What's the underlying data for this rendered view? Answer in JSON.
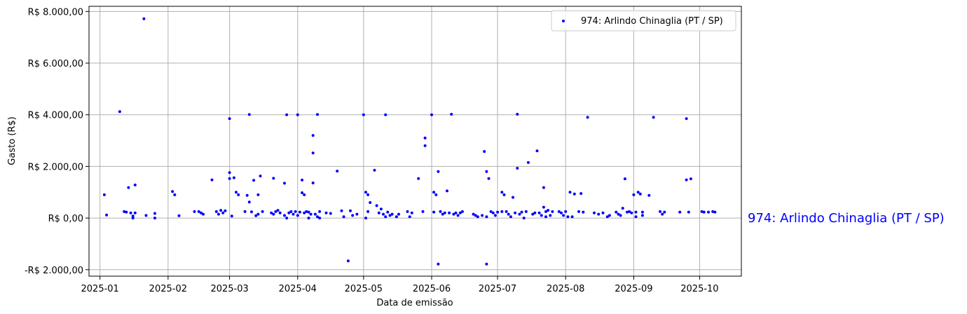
{
  "chart_data": {
    "type": "scatter",
    "xlabel": "Data de emissão",
    "ylabel": "Gasto (R$)",
    "xlim": [
      "2024-12-27",
      "2025-10-20"
    ],
    "ylim": [
      -2250,
      8200
    ],
    "x_ticks": [
      "2025-01-01",
      "2025-02-01",
      "2025-03-01",
      "2025-04-01",
      "2025-05-01",
      "2025-06-01",
      "2025-07-01",
      "2025-08-01",
      "2025-09-01",
      "2025-10-01"
    ],
    "x_tick_labels": [
      "2025-01",
      "2025-02",
      "2025-03",
      "2025-04",
      "2025-05",
      "2025-06",
      "2025-07",
      "2025-08",
      "2025-09",
      "2025-10"
    ],
    "y_ticks": [
      -2000,
      0,
      2000,
      4000,
      6000,
      8000
    ],
    "y_tick_labels": [
      "-R$ 2.000,00",
      "R$ 0,00",
      "R$ 2.000,00",
      "R$ 4.000,00",
      "R$ 6.000,00",
      "R$ 8.000,00"
    ],
    "grid": true,
    "legend_position": "top-right",
    "side_label": "974: Arlindo Chinaglia (PT / SP)",
    "series": [
      {
        "name": "974: Arlindo Chinaglia (PT / SP)",
        "color": "#0000ff",
        "points": [
          [
            "2025-01-03",
            900
          ],
          [
            "2025-01-04",
            120
          ],
          [
            "2025-01-10",
            4120
          ],
          [
            "2025-01-12",
            250
          ],
          [
            "2025-01-13",
            230
          ],
          [
            "2025-01-14",
            1180
          ],
          [
            "2025-01-15",
            200
          ],
          [
            "2025-01-16",
            80
          ],
          [
            "2025-01-16",
            0
          ],
          [
            "2025-01-17",
            200
          ],
          [
            "2025-01-17",
            1280
          ],
          [
            "2025-01-21",
            7720
          ],
          [
            "2025-01-22",
            100
          ],
          [
            "2025-01-26",
            180
          ],
          [
            "2025-01-26",
            0
          ],
          [
            "2025-02-03",
            1030
          ],
          [
            "2025-02-04",
            900
          ],
          [
            "2025-02-06",
            90
          ],
          [
            "2025-02-13",
            250
          ],
          [
            "2025-02-15",
            250
          ],
          [
            "2025-02-16",
            200
          ],
          [
            "2025-02-17",
            150
          ],
          [
            "2025-02-21",
            1480
          ],
          [
            "2025-02-23",
            250
          ],
          [
            "2025-02-24",
            150
          ],
          [
            "2025-02-25",
            300
          ],
          [
            "2025-02-26",
            200
          ],
          [
            "2025-02-27",
            280
          ],
          [
            "2025-03-01",
            3850
          ],
          [
            "2025-03-01",
            1530
          ],
          [
            "2025-03-01",
            1760
          ],
          [
            "2025-03-02",
            80
          ],
          [
            "2025-03-03",
            1560
          ],
          [
            "2025-03-04",
            1000
          ],
          [
            "2025-03-05",
            900
          ],
          [
            "2025-03-08",
            250
          ],
          [
            "2025-03-09",
            880
          ],
          [
            "2025-03-10",
            4010
          ],
          [
            "2025-03-10",
            620
          ],
          [
            "2025-03-11",
            240
          ],
          [
            "2025-03-12",
            1460
          ],
          [
            "2025-03-13",
            90
          ],
          [
            "2025-03-14",
            900
          ],
          [
            "2025-03-14",
            150
          ],
          [
            "2025-03-15",
            1630
          ],
          [
            "2025-03-16",
            250
          ],
          [
            "2025-03-20",
            200
          ],
          [
            "2025-03-21",
            1540
          ],
          [
            "2025-03-21",
            150
          ],
          [
            "2025-03-22",
            250
          ],
          [
            "2025-03-23",
            300
          ],
          [
            "2025-03-24",
            200
          ],
          [
            "2025-03-26",
            1350
          ],
          [
            "2025-03-26",
            100
          ],
          [
            "2025-03-27",
            4000
          ],
          [
            "2025-03-27",
            0
          ],
          [
            "2025-03-28",
            200
          ],
          [
            "2025-03-29",
            250
          ],
          [
            "2025-03-30",
            150
          ],
          [
            "2025-03-31",
            250
          ],
          [
            "2025-04-01",
            4000
          ],
          [
            "2025-04-01",
            100
          ],
          [
            "2025-04-02",
            230
          ],
          [
            "2025-04-03",
            1470
          ],
          [
            "2025-04-03",
            980
          ],
          [
            "2025-04-04",
            900
          ],
          [
            "2025-04-04",
            200
          ],
          [
            "2025-04-05",
            250
          ],
          [
            "2025-04-06",
            230
          ],
          [
            "2025-04-06",
            0
          ],
          [
            "2025-04-07",
            150
          ],
          [
            "2025-04-08",
            3200
          ],
          [
            "2025-04-08",
            2520
          ],
          [
            "2025-04-08",
            1360
          ],
          [
            "2025-04-09",
            150
          ],
          [
            "2025-04-10",
            4010
          ],
          [
            "2025-04-10",
            50
          ],
          [
            "2025-04-11",
            250
          ],
          [
            "2025-04-11",
            0
          ],
          [
            "2025-04-14",
            200
          ],
          [
            "2025-04-16",
            180
          ],
          [
            "2025-04-19",
            1820
          ],
          [
            "2025-04-21",
            280
          ],
          [
            "2025-04-22",
            50
          ],
          [
            "2025-04-24",
            -1660
          ],
          [
            "2025-04-25",
            280
          ],
          [
            "2025-04-26",
            100
          ],
          [
            "2025-04-28",
            150
          ],
          [
            "2025-05-01",
            4000
          ],
          [
            "2025-05-02",
            1000
          ],
          [
            "2025-05-02",
            0
          ],
          [
            "2025-05-03",
            900
          ],
          [
            "2025-05-03",
            250
          ],
          [
            "2025-05-04",
            600
          ],
          [
            "2025-05-06",
            1850
          ],
          [
            "2025-05-07",
            480
          ],
          [
            "2025-05-08",
            200
          ],
          [
            "2025-05-09",
            350
          ],
          [
            "2025-05-10",
            150
          ],
          [
            "2025-05-11",
            4000
          ],
          [
            "2025-05-11",
            50
          ],
          [
            "2025-05-12",
            230
          ],
          [
            "2025-05-13",
            100
          ],
          [
            "2025-05-14",
            150
          ],
          [
            "2025-05-16",
            50
          ],
          [
            "2025-05-17",
            150
          ],
          [
            "2025-05-21",
            250
          ],
          [
            "2025-05-22",
            50
          ],
          [
            "2025-05-23",
            200
          ],
          [
            "2025-05-26",
            1530
          ],
          [
            "2025-05-28",
            250
          ],
          [
            "2025-05-29",
            3100
          ],
          [
            "2025-05-29",
            2800
          ],
          [
            "2025-06-01",
            4000
          ],
          [
            "2025-06-02",
            1000
          ],
          [
            "2025-06-02",
            230
          ],
          [
            "2025-06-03",
            900
          ],
          [
            "2025-06-04",
            1800
          ],
          [
            "2025-06-04",
            -1780
          ],
          [
            "2025-06-05",
            250
          ],
          [
            "2025-06-06",
            150
          ],
          [
            "2025-06-07",
            200
          ],
          [
            "2025-06-08",
            1050
          ],
          [
            "2025-06-09",
            200
          ],
          [
            "2025-06-10",
            4020
          ],
          [
            "2025-06-11",
            150
          ],
          [
            "2025-06-12",
            200
          ],
          [
            "2025-06-13",
            100
          ],
          [
            "2025-06-14",
            200
          ],
          [
            "2025-06-15",
            250
          ],
          [
            "2025-06-20",
            150
          ],
          [
            "2025-06-21",
            100
          ],
          [
            "2025-06-22",
            50
          ],
          [
            "2025-06-24",
            100
          ],
          [
            "2025-06-25",
            2580
          ],
          [
            "2025-06-26",
            1800
          ],
          [
            "2025-06-26",
            50
          ],
          [
            "2025-06-26",
            -1780
          ],
          [
            "2025-06-27",
            1530
          ],
          [
            "2025-06-28",
            250
          ],
          [
            "2025-06-29",
            200
          ],
          [
            "2025-06-30",
            100
          ],
          [
            "2025-07-01",
            230
          ],
          [
            "2025-07-03",
            1000
          ],
          [
            "2025-07-03",
            250
          ],
          [
            "2025-07-04",
            900
          ],
          [
            "2025-07-05",
            250
          ],
          [
            "2025-07-06",
            150
          ],
          [
            "2025-07-07",
            50
          ],
          [
            "2025-07-08",
            800
          ],
          [
            "2025-07-09",
            200
          ],
          [
            "2025-07-10",
            4020
          ],
          [
            "2025-07-10",
            1930
          ],
          [
            "2025-07-11",
            150
          ],
          [
            "2025-07-12",
            230
          ],
          [
            "2025-07-13",
            0
          ],
          [
            "2025-07-14",
            250
          ],
          [
            "2025-07-15",
            2150
          ],
          [
            "2025-07-17",
            150
          ],
          [
            "2025-07-18",
            200
          ],
          [
            "2025-07-19",
            2600
          ],
          [
            "2025-07-20",
            200
          ],
          [
            "2025-07-21",
            100
          ],
          [
            "2025-07-22",
            1180
          ],
          [
            "2025-07-22",
            420
          ],
          [
            "2025-07-23",
            50
          ],
          [
            "2025-07-23",
            250
          ],
          [
            "2025-07-24",
            300
          ],
          [
            "2025-07-25",
            100
          ],
          [
            "2025-07-26",
            250
          ],
          [
            "2025-07-29",
            250
          ],
          [
            "2025-07-30",
            200
          ],
          [
            "2025-07-31",
            100
          ],
          [
            "2025-08-01",
            250
          ],
          [
            "2025-08-02",
            50
          ],
          [
            "2025-08-03",
            1000
          ],
          [
            "2025-08-04",
            50
          ],
          [
            "2025-08-05",
            930
          ],
          [
            "2025-08-07",
            250
          ],
          [
            "2025-08-08",
            950
          ],
          [
            "2025-08-09",
            230
          ],
          [
            "2025-08-11",
            3900
          ],
          [
            "2025-08-14",
            200
          ],
          [
            "2025-08-16",
            150
          ],
          [
            "2025-08-18",
            200
          ],
          [
            "2025-08-20",
            50
          ],
          [
            "2025-08-21",
            100
          ],
          [
            "2025-08-24",
            230
          ],
          [
            "2025-08-25",
            150
          ],
          [
            "2025-08-26",
            100
          ],
          [
            "2025-08-27",
            380
          ],
          [
            "2025-08-28",
            1520
          ],
          [
            "2025-08-29",
            230
          ],
          [
            "2025-08-30",
            250
          ],
          [
            "2025-08-31",
            200
          ],
          [
            "2025-09-01",
            900
          ],
          [
            "2025-09-02",
            230
          ],
          [
            "2025-09-02",
            50
          ],
          [
            "2025-09-03",
            1000
          ],
          [
            "2025-09-04",
            930
          ],
          [
            "2025-09-05",
            230
          ],
          [
            "2025-09-05",
            100
          ],
          [
            "2025-09-08",
            880
          ],
          [
            "2025-09-10",
            3900
          ],
          [
            "2025-09-13",
            250
          ],
          [
            "2025-09-14",
            150
          ],
          [
            "2025-09-15",
            230
          ],
          [
            "2025-09-22",
            230
          ],
          [
            "2025-09-25",
            3850
          ],
          [
            "2025-09-25",
            1480
          ],
          [
            "2025-09-26",
            230
          ],
          [
            "2025-09-27",
            1520
          ],
          [
            "2025-10-02",
            250
          ],
          [
            "2025-10-03",
            230
          ],
          [
            "2025-10-05",
            230
          ],
          [
            "2025-10-07",
            250
          ],
          [
            "2025-10-08",
            230
          ]
        ]
      }
    ]
  }
}
